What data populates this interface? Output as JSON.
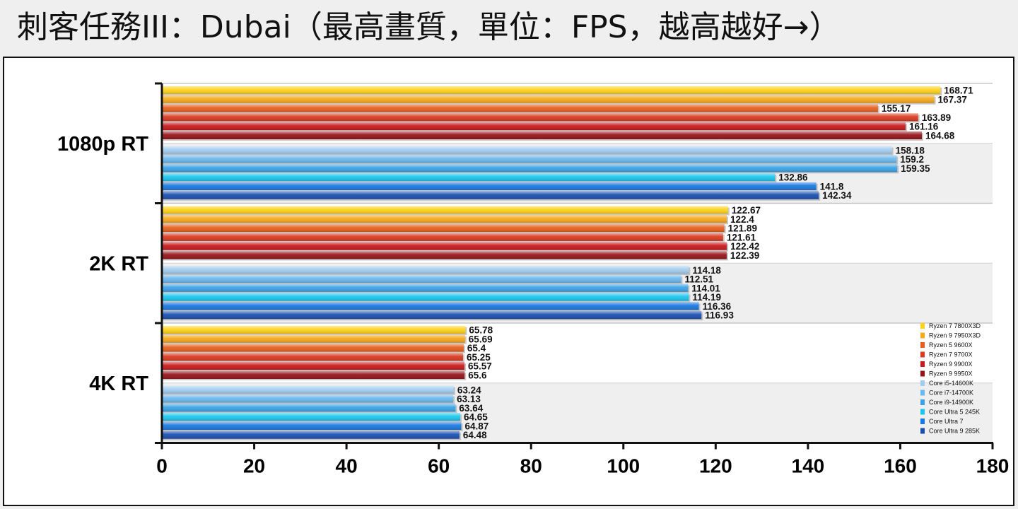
{
  "title": "刺客任務III：Dubai（最高畫質，單位：FPS，越高越好→）",
  "chart_data": {
    "type": "bar",
    "orientation": "horizontal",
    "categories": [
      "1080p RT",
      "2K RT",
      "4K RT"
    ],
    "xlim": [
      0,
      180
    ],
    "xticks": [
      0,
      20,
      40,
      60,
      80,
      100,
      120,
      140,
      160,
      180
    ],
    "legend_position": "bottom-right",
    "series": [
      {
        "name": "Ryzen 7 7800X3D",
        "color": "#ffd21a",
        "values": [
          168.71,
          122.67,
          65.78
        ]
      },
      {
        "name": "Ryzen 9 7950X3D",
        "color": "#f6a81c",
        "values": [
          167.37,
          122.4,
          65.69
        ]
      },
      {
        "name": "Ryzen 5 9600X",
        "color": "#e6601c",
        "values": [
          155.17,
          121.89,
          65.4
        ]
      },
      {
        "name": "Ryzen 7 9700X",
        "color": "#d93a20",
        "values": [
          163.89,
          121.61,
          65.25
        ]
      },
      {
        "name": "Ryzen 9 9900X",
        "color": "#c8191c",
        "values": [
          161.16,
          122.42,
          65.57
        ]
      },
      {
        "name": "Ryzen 9 9950X",
        "color": "#96141a",
        "values": [
          164.68,
          122.39,
          65.6
        ]
      },
      {
        "name": "Core i5-14600K",
        "color": "#a3cdf0",
        "values": [
          158.18,
          114.18,
          63.24
        ]
      },
      {
        "name": "Core i7-14700K",
        "color": "#6bb8ee",
        "values": [
          159.2,
          112.51,
          63.13
        ]
      },
      {
        "name": "Core i9-14900K",
        "color": "#3ba2e6",
        "values": [
          159.35,
          114.01,
          63.64
        ]
      },
      {
        "name": "Core Ultra 5 245K",
        "color": "#1bc6ee",
        "values": [
          132.86,
          114.19,
          64.65
        ]
      },
      {
        "name": "Core Ultra 7",
        "color": "#1a78e0",
        "values": [
          141.8,
          116.36,
          64.87
        ]
      },
      {
        "name": "Core Ultra 9 285K",
        "color": "#1a4fb0",
        "values": [
          142.34,
          116.93,
          64.48
        ]
      }
    ]
  }
}
